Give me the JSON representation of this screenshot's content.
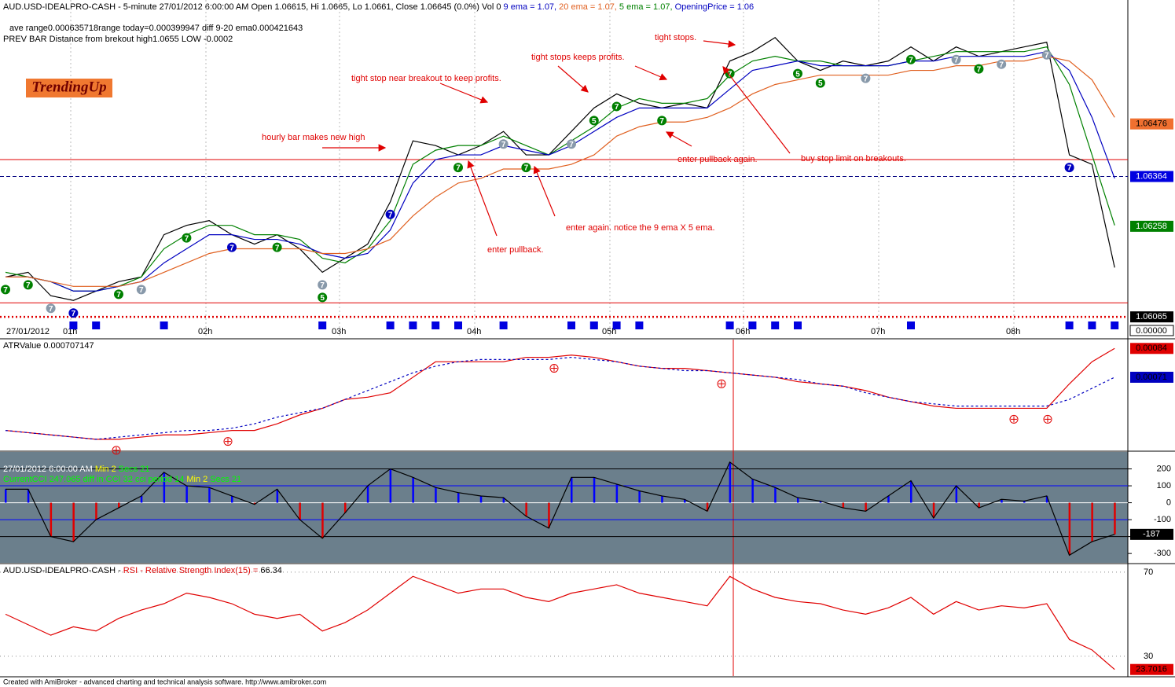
{
  "header": {
    "segments": [
      {
        "text": "AUD.USD-IDEALPRO-CASH - 5-minute 27/01/2012 6:00:00 AM Open 1.06615, Hi 1.0665, Lo 1.0661, Close 1.06645 (0.0%) Vol 0 ",
        "color": "#000000"
      },
      {
        "text": "9 ema = 1.07, ",
        "color": "#0000c0"
      },
      {
        "text": "20 ema = 1.07, ",
        "color": "#e06020"
      },
      {
        "text": "5 ema = 1.07, ",
        "color": "#008000"
      },
      {
        "text": "OpeningPrice = 1.06",
        "color": "#0000c0"
      }
    ],
    "lines": [
      "ave range0.000635718range today=0.000399947 diff 9-20 ema0.000421643",
      "PREV BAR Distance from brekout high1.0655 LOW -0.0002"
    ],
    "badge": "TrendingUp"
  },
  "chart_data": [
    {
      "type": "price",
      "ylim": [
        1.0602,
        1.0674
      ],
      "x_labels": [
        "27/01/2012",
        "01h",
        "02h",
        "03h",
        "04h",
        "05h",
        "06h",
        "07h",
        "08h"
      ],
      "series": [
        {
          "color": "#000000",
          "values": [
            1.0615,
            1.0616,
            1.0611,
            1.061,
            1.0612,
            1.0614,
            1.0615,
            1.0624,
            1.0626,
            1.0627,
            1.0624,
            1.0622,
            1.0624,
            1.0621,
            1.0616,
            1.0619,
            1.0622,
            1.0631,
            1.0644,
            1.0643,
            1.0641,
            1.0643,
            1.0646,
            1.0641,
            1.0641,
            1.0646,
            1.0651,
            1.0654,
            1.0652,
            1.0651,
            1.0652,
            1.0651,
            1.0661,
            1.0663,
            1.0666,
            1.0661,
            1.0659,
            1.0661,
            1.066,
            1.0661,
            1.0664,
            1.0661,
            1.0664,
            1.0662,
            1.0663,
            1.0664,
            1.0665,
            1.0641,
            1.0639,
            1.0617
          ]
        },
        {
          "color": "#008000",
          "values": [
            1.0616,
            1.0615,
            1.0614,
            1.0612,
            1.0612,
            1.0613,
            1.0615,
            1.0621,
            1.0624,
            1.0626,
            1.0626,
            1.0624,
            1.0624,
            1.0623,
            1.0619,
            1.0618,
            1.0621,
            1.0627,
            1.0639,
            1.0642,
            1.0643,
            1.0643,
            1.0645,
            1.0643,
            1.0641,
            1.0644,
            1.0647,
            1.0651,
            1.0653,
            1.0652,
            1.0652,
            1.0653,
            1.0658,
            1.0661,
            1.0662,
            1.0661,
            1.0661,
            1.066,
            1.066,
            1.066,
            1.0661,
            1.0662,
            1.0663,
            1.0663,
            1.0663,
            1.0663,
            1.0664,
            1.0656,
            1.0641,
            1.0626
          ]
        },
        {
          "color": "#0000c0",
          "values": [
            1.0615,
            1.0615,
            1.0614,
            1.0612,
            1.0612,
            1.0613,
            1.0614,
            1.0618,
            1.0621,
            1.0624,
            1.0624,
            1.0623,
            1.0623,
            1.0622,
            1.062,
            1.0619,
            1.062,
            1.0625,
            1.0635,
            1.064,
            1.0641,
            1.0641,
            1.0643,
            1.0642,
            1.0641,
            1.0643,
            1.0646,
            1.0649,
            1.0651,
            1.0651,
            1.0651,
            1.0651,
            1.0655,
            1.0659,
            1.066,
            1.0661,
            1.066,
            1.066,
            1.066,
            1.066,
            1.0661,
            1.0661,
            1.0662,
            1.0662,
            1.0662,
            1.0662,
            1.0663,
            1.0659,
            1.0649,
            1.0636
          ]
        },
        {
          "color": "#e06020",
          "values": [
            1.0615,
            1.0615,
            1.0614,
            1.0613,
            1.0613,
            1.0613,
            1.0614,
            1.0616,
            1.0618,
            1.062,
            1.0621,
            1.0621,
            1.0621,
            1.0621,
            1.062,
            1.062,
            1.0621,
            1.0623,
            1.0628,
            1.0632,
            1.0635,
            1.0636,
            1.0638,
            1.0638,
            1.0638,
            1.0639,
            1.0641,
            1.0645,
            1.0647,
            1.0648,
            1.0648,
            1.0649,
            1.0651,
            1.0654,
            1.0656,
            1.0657,
            1.0658,
            1.0658,
            1.0658,
            1.0658,
            1.0659,
            1.0659,
            1.066,
            1.066,
            1.0661,
            1.0661,
            1.0662,
            1.0661,
            1.0657,
            1.0649
          ]
        }
      ],
      "levels": [
        {
          "value": 1.064,
          "color": "#e00000",
          "dash": "none"
        },
        {
          "value": 1.06364,
          "color": "#000080",
          "dash": "5,3"
        },
        {
          "value": 1.06095,
          "color": "#e00000",
          "dash": "none"
        },
        {
          "value": 1.06065,
          "color": "#e00000",
          "dash": "2,3"
        }
      ],
      "axis_labels": [
        1.06476,
        1.06364,
        1.06258,
        1.06065
      ],
      "axis_label_colors": [
        "#f07030",
        "#0000e0",
        "#008000",
        "#000000"
      ],
      "volume_label": "0.00000",
      "annotations": [
        "tight stops.",
        "tight stops keeps profits.",
        "tight stop near breakout to keep profits.",
        "hourly bar makes new high",
        "enter pullback again.",
        "buy stop limit on breakouts.",
        "enter again. notice the 9 ema X 5 ema.",
        "enter pullback."
      ],
      "signals": [
        {
          "label": "7",
          "color": "#008000"
        },
        {
          "label": "7",
          "color": "#008000"
        },
        {
          "label": "7",
          "color": "#8899aa"
        },
        {
          "label": "7",
          "color": "#0000c0"
        },
        {
          "label": "7",
          "color": "#008000"
        },
        {
          "label": "7",
          "color": "#8899aa"
        },
        {
          "label": "7",
          "color": "#008000"
        },
        {
          "label": "7",
          "color": "#0000c0"
        },
        {
          "label": "7",
          "color": "#008000"
        },
        {
          "label": "7",
          "color": "#8899aa"
        },
        {
          "label": "5",
          "color": "#008000"
        },
        {
          "label": "7",
          "color": "#0000c0"
        },
        {
          "label": "7",
          "color": "#008000"
        },
        {
          "label": "7",
          "color": "#8899aa"
        },
        {
          "label": "7",
          "color": "#008000"
        },
        {
          "label": "7",
          "color": "#8899aa"
        },
        {
          "label": "5",
          "color": "#008000"
        },
        {
          "label": "7",
          "color": "#008000"
        },
        {
          "label": "7",
          "color": "#008000"
        },
        {
          "label": "7",
          "color": "#008000"
        },
        {
          "label": "5",
          "color": "#008000"
        },
        {
          "label": "5",
          "color": "#008000"
        },
        {
          "label": "7",
          "color": "#8899aa"
        },
        {
          "label": "7",
          "color": "#008000"
        },
        {
          "label": "7",
          "color": "#8899aa"
        },
        {
          "label": "7",
          "color": "#008000"
        },
        {
          "label": "7",
          "color": "#8899aa"
        },
        {
          "label": "7",
          "color": "#8899aa"
        },
        {
          "label": "7",
          "color": "#0000c0"
        }
      ]
    },
    {
      "type": "line",
      "title": [
        {
          "text": "ATRValue 0.000707147",
          "color": "#000000"
        }
      ],
      "ylim": [
        0.00038,
        0.00088
      ],
      "series": [
        {
          "color": "#e00000",
          "dash": "none",
          "values": [
            0.00047,
            0.00046,
            0.00045,
            0.00044,
            0.00043,
            0.00043,
            0.00044,
            0.00045,
            0.00045,
            0.00046,
            0.00047,
            0.00047,
            0.0005,
            0.00054,
            0.00057,
            0.00061,
            0.00062,
            0.00064,
            0.00071,
            0.00078,
            0.00078,
            0.00078,
            0.00078,
            0.0008,
            0.0008,
            0.00081,
            0.0008,
            0.00078,
            0.00076,
            0.00075,
            0.00075,
            0.00074,
            0.00073,
            0.00072,
            0.00071,
            0.00069,
            0.00068,
            0.00067,
            0.00065,
            0.00062,
            0.0006,
            0.00058,
            0.00057,
            0.00057,
            0.00057,
            0.00057,
            0.00057,
            0.00068,
            0.00078,
            0.00084
          ]
        },
        {
          "color": "#0000c0",
          "dash": "3,3",
          "values": [
            0.00047,
            0.00046,
            0.00045,
            0.00044,
            0.00043,
            0.00044,
            0.00045,
            0.00046,
            0.00047,
            0.00047,
            0.00048,
            0.0005,
            0.00053,
            0.00055,
            0.00057,
            0.00061,
            0.00065,
            0.00069,
            0.00073,
            0.00076,
            0.00078,
            0.00079,
            0.00079,
            0.00079,
            0.00079,
            0.0008,
            0.00079,
            0.00078,
            0.00076,
            0.00075,
            0.00074,
            0.00074,
            0.00073,
            0.00072,
            0.00071,
            0.0007,
            0.00068,
            0.00067,
            0.00064,
            0.00062,
            0.0006,
            0.00059,
            0.00058,
            0.00058,
            0.00058,
            0.00058,
            0.00058,
            0.00061,
            0.00066,
            0.00071
          ]
        }
      ]
    },
    {
      "type": "cci",
      "background": "#6b7f8c",
      "texts": [
        [
          {
            "text": "27/01/2012 6:00:00 AM ",
            "color": "#ffffff"
          },
          {
            "text": "Min 2",
            "color": "#ffff00"
          },
          {
            "text": " Secs 21",
            "color": "#00ff00"
          }
        ],
        [
          {
            "text": "CurrentCCI 247.065 diff in CCI 32 cci period 14 ",
            "color": "#00ff00"
          },
          {
            "text": "Min 2",
            "color": "#ffff00"
          },
          {
            "text": " Secs 21",
            "color": "#00ff00"
          }
        ]
      ],
      "ylim": [
        -355,
        300
      ],
      "yticks": [
        200,
        100,
        0,
        -100,
        -200,
        -300
      ],
      "ytick_colors": [
        "#000000",
        "#0000ff",
        "#ffffff",
        "#0000ff",
        "#000000",
        "none"
      ],
      "values": [
        80,
        80,
        -200,
        -230,
        -100,
        -30,
        40,
        180,
        100,
        90,
        40,
        -10,
        80,
        -100,
        -210,
        -60,
        100,
        200,
        150,
        90,
        60,
        40,
        30,
        -80,
        -150,
        150,
        150,
        110,
        70,
        40,
        20,
        -50,
        240,
        140,
        90,
        30,
        10,
        -30,
        -50,
        40,
        130,
        -90,
        100,
        -30,
        20,
        10,
        40,
        -310,
        -230,
        -187
      ],
      "line_color": "#000000",
      "bar_colors": {
        "positive": "#0000ff",
        "negative": "#e00000"
      }
    },
    {
      "type": "line",
      "title": [
        {
          "text": "AUD.USD-IDEALPRO-CASH - ",
          "color": "#000000"
        },
        {
          "text": "RSI - Relative Strength Index(15) = ",
          "color": "#e00000"
        },
        {
          "text": "66.34",
          "color": "#000000"
        }
      ],
      "ylim": [
        20.6,
        73.7
      ],
      "yticks": [
        70,
        30
      ],
      "series": [
        {
          "color": "#e00000",
          "dash": "none",
          "values": [
            50,
            45,
            40,
            44,
            42,
            48,
            52,
            55,
            60,
            58,
            55,
            50,
            48,
            50,
            42,
            46,
            52,
            60,
            68,
            64,
            60,
            62,
            62,
            58,
            56,
            60,
            62,
            64,
            60,
            58,
            56,
            54,
            68,
            62,
            58,
            56,
            55,
            52,
            50,
            53,
            58,
            50,
            56,
            52,
            54,
            53,
            55,
            38,
            33,
            23.7016
          ]
        }
      ],
      "last_label_color": "#e00000"
    }
  ],
  "footer": "Created with AmiBroker - advanced charting and technical analysis software. http://www.amibroker.com"
}
